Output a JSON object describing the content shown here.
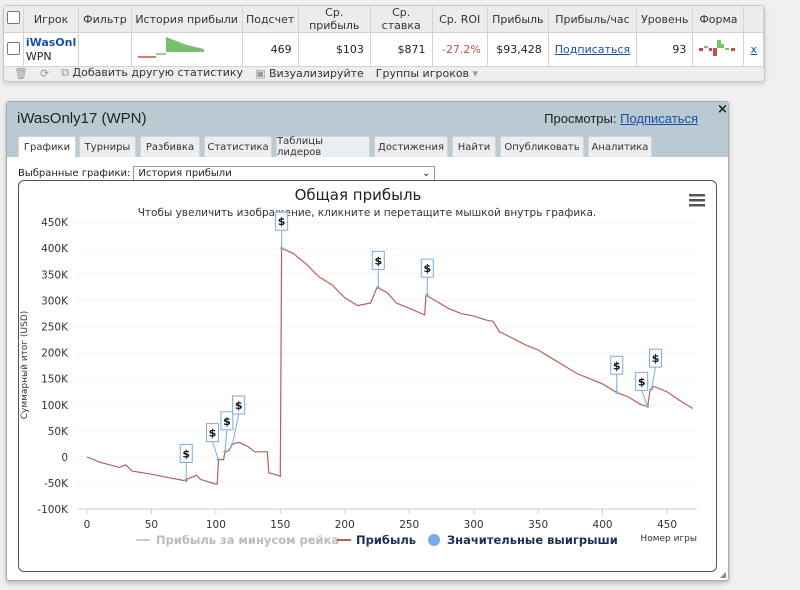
{
  "table": {
    "headers": [
      "",
      "Игрок",
      "Фильтр",
      "История прибыли",
      "Подсчет",
      "Ср. прибыль",
      "Ср. ставка",
      "Ср. ROI",
      "Прибыль",
      "Прибыль/час",
      "Уровень",
      "Форма",
      ""
    ],
    "row": {
      "player": "iWasOnl",
      "network": "WPN",
      "count": "469",
      "avg_profit": "$103",
      "avg_stake": "$871",
      "avg_roi": "-27.2%",
      "profit": "$93,428",
      "profit_per_hour": "Подписаться",
      "level": "93",
      "remove": "x"
    },
    "roi_color": "#c0504d"
  },
  "toolbar": {
    "add_stat": "Добавить другую статистику",
    "visualize": "Визуализируйте",
    "groups": "Группы игроков"
  },
  "panel": {
    "title": "iWasOnly17 (WPN)",
    "views_label": "Просмотры:",
    "views_link": "Подписаться",
    "close": "×",
    "tabs": [
      "Графики",
      "Турниры",
      "Разбивка",
      "Статистика",
      "Таблицы лидеров",
      "Достижения",
      "Найти",
      "Опубликовать",
      "Аналитика"
    ],
    "selected_label": "Выбранные графики:",
    "selected_value": "История прибыли"
  },
  "chart_data": {
    "type": "line",
    "title": "Общая прибыль",
    "subtitle": "Чтобы увеличить изображение, кликните и перетащите мышкой внутрь графика.",
    "xlabel": "Номер игры",
    "ylabel": "Суммарный итог (USD)",
    "xlim": [
      0,
      470
    ],
    "ylim": [
      -100000,
      450000
    ],
    "xticks": [
      "0",
      "50",
      "100",
      "150",
      "200",
      "250",
      "300",
      "350",
      "400",
      "450"
    ],
    "yticks": [
      "450K",
      "400K",
      "350K",
      "300K",
      "250K",
      "200K",
      "150K",
      "100K",
      "50K",
      "0",
      "-50K",
      "-100K"
    ],
    "grid": true,
    "legend": [
      "Прибыль за минусом рейка",
      "Прибыль",
      "Значительные выигрыши"
    ],
    "legend_placement": "bottom",
    "series": [
      {
        "name": "Прибыль",
        "color": "#b5605c",
        "x": [
          0,
          10,
          25,
          30,
          35,
          50,
          60,
          75,
          77,
          85,
          88,
          100,
          101,
          102,
          106,
          107,
          110,
          113,
          118,
          125,
          130,
          140,
          141,
          148,
          150,
          151,
          160,
          170,
          180,
          190,
          200,
          210,
          220,
          225,
          233,
          240,
          250,
          262,
          263,
          270,
          280,
          290,
          300,
          310,
          315,
          320,
          330,
          340,
          350,
          360,
          370,
          380,
          390,
          400,
          410,
          415,
          420,
          430,
          435,
          437,
          440,
          450,
          460,
          470
        ],
        "y": [
          0,
          -10000,
          -20000,
          -15000,
          -27000,
          -33000,
          -38000,
          -45000,
          -43000,
          -35000,
          -43000,
          -52000,
          -52000,
          -5000,
          -5000,
          10000,
          12000,
          25000,
          28000,
          20000,
          10000,
          10000,
          -30000,
          -35000,
          -37000,
          400000,
          390000,
          370000,
          345000,
          330000,
          305000,
          290000,
          295000,
          325000,
          315000,
          295000,
          285000,
          272000,
          310000,
          300000,
          285000,
          275000,
          270000,
          262000,
          260000,
          240000,
          228000,
          215000,
          205000,
          190000,
          175000,
          160000,
          150000,
          140000,
          125000,
          120000,
          115000,
          100000,
          97000,
          130000,
          135000,
          125000,
          108000,
          93000
        ]
      }
    ],
    "big_wins": {
      "name": "Значительные выигрыши",
      "color": "#7aaae8",
      "label": "$",
      "x": [
        77,
        102,
        107,
        113,
        151,
        226,
        264,
        411,
        435,
        438
      ],
      "y": [
        -45000,
        -5000,
        10000,
        25000,
        400000,
        325000,
        310000,
        124000,
        97000,
        130000
      ]
    }
  }
}
